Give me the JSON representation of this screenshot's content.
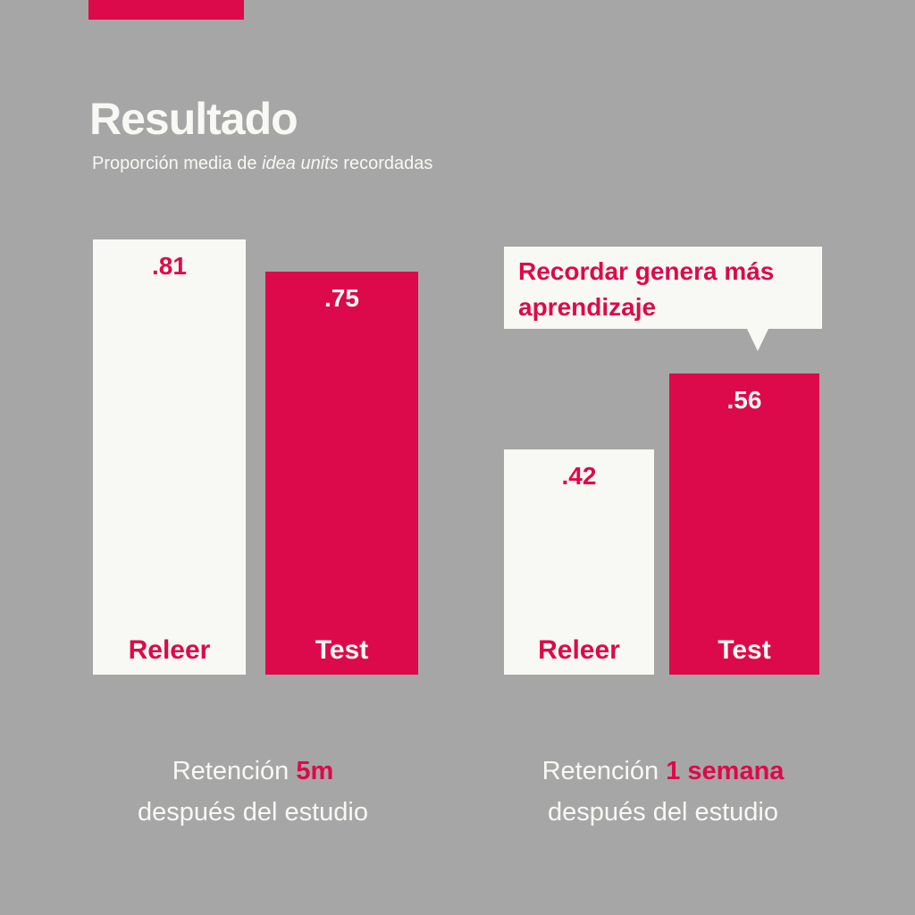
{
  "header": {
    "title": "Resultado",
    "subtitle_pre": "Proporción media de ",
    "subtitle_em": "idea units",
    "subtitle_post": " recordadas"
  },
  "callout": {
    "text": "Recordar genera más aprendizaje"
  },
  "colors": {
    "background": "#a6a6a6",
    "accent": "#dc0a4a",
    "light": "#f8f8f4"
  },
  "chart_data": {
    "type": "bar",
    "title": "Resultado",
    "subtitle": "Proporción media de idea units recordadas",
    "ylim": [
      0,
      0.81
    ],
    "groups": [
      {
        "label_pre": "Retención ",
        "label_hl": "5m",
        "label_post": "después del estudio",
        "bars": [
          {
            "category": "Releer",
            "value": 0.81,
            "label": ".81",
            "style": "white"
          },
          {
            "category": "Test",
            "value": 0.75,
            "label": ".75",
            "style": "red"
          }
        ]
      },
      {
        "label_pre": "Retención ",
        "label_hl": "1 semana",
        "label_post": "después del estudio",
        "bars": [
          {
            "category": "Releer",
            "value": 0.42,
            "label": ".42",
            "style": "white"
          },
          {
            "category": "Test",
            "value": 0.56,
            "label": ".56",
            "style": "red"
          }
        ]
      }
    ]
  }
}
